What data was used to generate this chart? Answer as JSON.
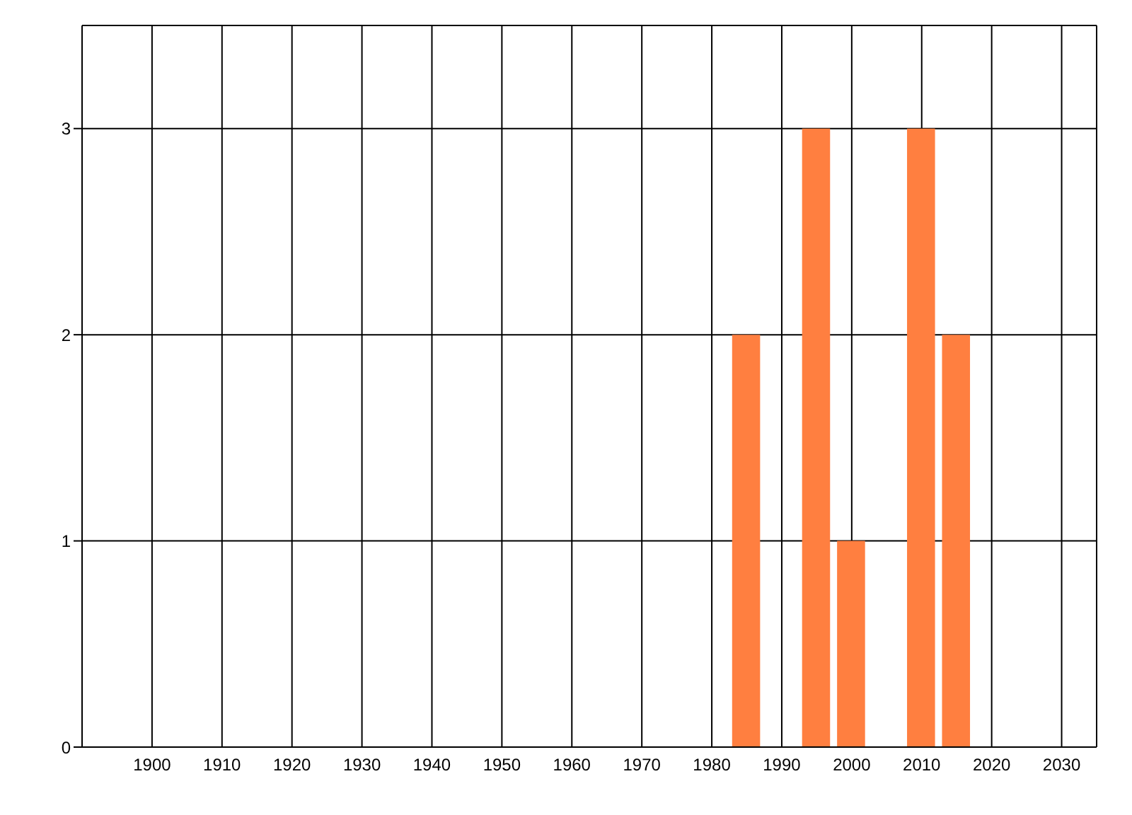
{
  "chart_data": {
    "type": "bar",
    "x": [
      1985,
      1995,
      2000,
      2010,
      2015
    ],
    "values": [
      2,
      3,
      1,
      3,
      2
    ],
    "color": "#ff7f40",
    "xlim": [
      1890,
      2035
    ],
    "xticks": [
      1900,
      1910,
      1920,
      1930,
      1940,
      1950,
      1960,
      1970,
      1980,
      1990,
      2000,
      2010,
      2020,
      2030
    ],
    "ylim": [
      0,
      3.5
    ],
    "yticks": [
      0,
      1,
      2,
      3
    ],
    "grid": true
  }
}
